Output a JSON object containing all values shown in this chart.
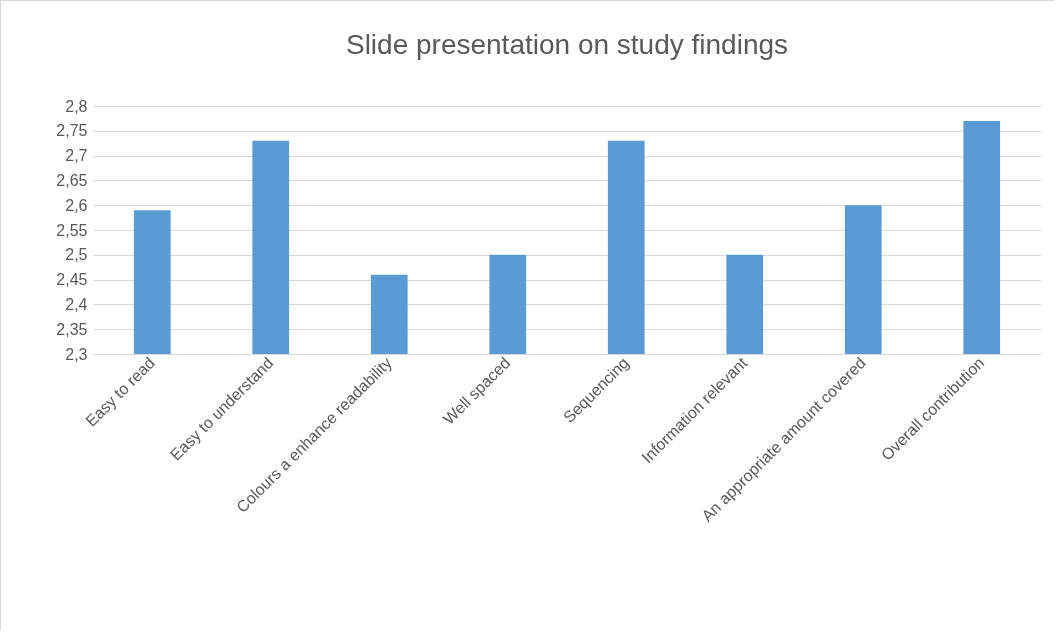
{
  "chart_data": {
    "type": "bar",
    "title": "Slide presentation on study findings",
    "categories": [
      "Easy to read",
      "Easy to understand",
      "Colours a enhance readability",
      "Well spaced",
      "Sequencing",
      "Information  relevant",
      "An appropriate amount  covered",
      "Overall contribution"
    ],
    "values": [
      2.59,
      2.73,
      2.46,
      2.5,
      2.73,
      2.5,
      2.6,
      2.77
    ],
    "color": "#5b9bd5",
    "ylim": [
      2.3,
      2.8
    ],
    "yticks": [
      {
        "value": 2.3,
        "label": "2,3"
      },
      {
        "value": 2.35,
        "label": "2,35"
      },
      {
        "value": 2.4,
        "label": "2,4"
      },
      {
        "value": 2.45,
        "label": "2,45"
      },
      {
        "value": 2.5,
        "label": "2,5"
      },
      {
        "value": 2.55,
        "label": "2,55"
      },
      {
        "value": 2.6,
        "label": "2,6"
      },
      {
        "value": 2.65,
        "label": "2,65"
      },
      {
        "value": 2.7,
        "label": "2,7"
      },
      {
        "value": 2.75,
        "label": "2,75"
      },
      {
        "value": 2.8,
        "label": "2,8"
      }
    ],
    "grid": "y"
  }
}
